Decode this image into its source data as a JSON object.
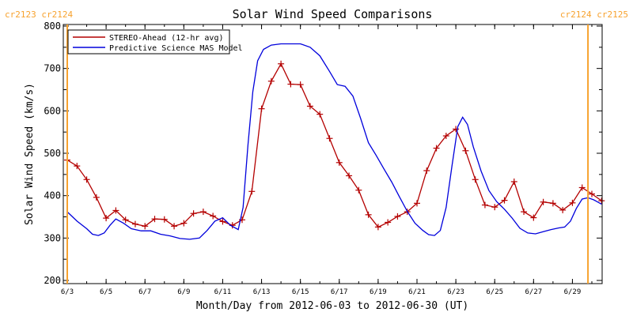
{
  "chart_data": {
    "type": "line",
    "title": "Solar Wind Speed Comparisons",
    "xlabel": "Month/Day from 2012-06-03 to 2012-06-30 (UT)",
    "ylabel": "Solar Wind Speed (km/s)",
    "ylim": [
      200,
      800
    ],
    "xlim": [
      "2012-06-03",
      "2012-06-30"
    ],
    "yticks": [
      200,
      300,
      400,
      500,
      600,
      700,
      800
    ],
    "xticks": [
      "6/3",
      "6/5",
      "6/7",
      "6/9",
      "6/11",
      "6/13",
      "6/15",
      "6/17",
      "6/19",
      "6/21",
      "6/23",
      "6/25",
      "6/27",
      "6/29"
    ],
    "legend_position": "top-left",
    "rotation_markers": [
      {
        "date": "2012-06-03",
        "label": "cr2123 cr2124",
        "color": "#f7a22e"
      },
      {
        "date": "2012-06-29.8",
        "label": "cr2124 cr2125",
        "color": "#f7a22e"
      }
    ],
    "series": [
      {
        "name": "STEREO-Ahead (12-hr avg)",
        "color": "#b40000",
        "marker": "plus",
        "points": [
          [
            "2012-06-03",
            484
          ],
          [
            "2012-06-03.5",
            470
          ],
          [
            "2012-06-04",
            438
          ],
          [
            "2012-06-04.5",
            396
          ],
          [
            "2012-06-05",
            347
          ],
          [
            "2012-06-05.5",
            365
          ],
          [
            "2012-06-06",
            343
          ],
          [
            "2012-06-06.5",
            333
          ],
          [
            "2012-06-07",
            328
          ],
          [
            "2012-06-07.5",
            345
          ],
          [
            "2012-06-08",
            344
          ],
          [
            "2012-06-08.5",
            328
          ],
          [
            "2012-06-09",
            335
          ],
          [
            "2012-06-09.5",
            358
          ],
          [
            "2012-06-10",
            362
          ],
          [
            "2012-06-10.5",
            352
          ],
          [
            "2012-06-11",
            339
          ],
          [
            "2012-06-11.5",
            330
          ],
          [
            "2012-06-12",
            343
          ],
          [
            "2012-06-12.5",
            410
          ],
          [
            "2012-06-13",
            605
          ],
          [
            "2012-06-13.5",
            670
          ],
          [
            "2012-06-14",
            711
          ],
          [
            "2012-06-14.5",
            663
          ],
          [
            "2012-06-15",
            662
          ],
          [
            "2012-06-15.5",
            611
          ],
          [
            "2012-06-16",
            592
          ],
          [
            "2012-06-16.5",
            535
          ],
          [
            "2012-06-17",
            478
          ],
          [
            "2012-06-17.5",
            447
          ],
          [
            "2012-06-18",
            413
          ],
          [
            "2012-06-18.5",
            355
          ],
          [
            "2012-06-19",
            326
          ],
          [
            "2012-06-19.5",
            337
          ],
          [
            "2012-06-20",
            351
          ],
          [
            "2012-06-20.5",
            362
          ],
          [
            "2012-06-21",
            382
          ],
          [
            "2012-06-21.5",
            459
          ],
          [
            "2012-06-22",
            512
          ],
          [
            "2012-06-22.5",
            541
          ],
          [
            "2012-06-23",
            557
          ],
          [
            "2012-06-23.5",
            506
          ],
          [
            "2012-06-24",
            438
          ],
          [
            "2012-06-24.5",
            378
          ],
          [
            "2012-06-25",
            373
          ],
          [
            "2012-06-25.5",
            389
          ],
          [
            "2012-06-26",
            433
          ],
          [
            "2012-06-26.5",
            362
          ],
          [
            "2012-06-27",
            348
          ],
          [
            "2012-06-27.5",
            385
          ],
          [
            "2012-06-28",
            382
          ],
          [
            "2012-06-28.5",
            366
          ],
          [
            "2012-06-29",
            383
          ],
          [
            "2012-06-29.5",
            419
          ],
          [
            "2012-06-30",
            404
          ],
          [
            "2012-06-30.5",
            388
          ]
        ]
      },
      {
        "name": "Predictive Science MAS Model",
        "color": "#0000dc",
        "marker": "none",
        "points": [
          [
            "2012-06-03",
            362
          ],
          [
            "2012-06-03.5",
            340
          ],
          [
            "2012-06-04",
            322
          ],
          [
            "2012-06-04.3",
            309
          ],
          [
            "2012-06-04.6",
            306
          ],
          [
            "2012-06-04.9",
            312
          ],
          [
            "2012-06-05.2",
            330
          ],
          [
            "2012-06-05.5",
            345
          ],
          [
            "2012-06-05.9",
            335
          ],
          [
            "2012-06-06.3",
            322
          ],
          [
            "2012-06-06.8",
            317
          ],
          [
            "2012-06-07.3",
            317
          ],
          [
            "2012-06-07.8",
            309
          ],
          [
            "2012-06-08.3",
            305
          ],
          [
            "2012-06-08.8",
            299
          ],
          [
            "2012-06-09.3",
            297
          ],
          [
            "2012-06-09.8",
            300
          ],
          [
            "2012-06-10.2",
            318
          ],
          [
            "2012-06-10.6",
            340
          ],
          [
            "2012-06-11",
            348
          ],
          [
            "2012-06-11.4",
            330
          ],
          [
            "2012-06-11.8",
            320
          ],
          [
            "2012-06-12.05",
            372
          ],
          [
            "2012-06-12.3",
            520
          ],
          [
            "2012-06-12.55",
            645
          ],
          [
            "2012-06-12.8",
            718
          ],
          [
            "2012-06-13.1",
            745
          ],
          [
            "2012-06-13.5",
            755
          ],
          [
            "2012-06-14",
            758
          ],
          [
            "2012-06-15",
            758
          ],
          [
            "2012-06-15.5",
            750
          ],
          [
            "2012-06-16",
            730
          ],
          [
            "2012-06-16.5",
            693
          ],
          [
            "2012-06-16.9",
            662
          ],
          [
            "2012-06-17.3",
            658
          ],
          [
            "2012-06-17.7",
            635
          ],
          [
            "2012-06-18.1",
            582
          ],
          [
            "2012-06-18.5",
            525
          ],
          [
            "2012-06-18.9",
            495
          ],
          [
            "2012-06-19.3",
            463
          ],
          [
            "2012-06-19.7",
            432
          ],
          [
            "2012-06-20.1",
            397
          ],
          [
            "2012-06-20.5",
            363
          ],
          [
            "2012-06-20.9",
            335
          ],
          [
            "2012-06-21.3",
            318
          ],
          [
            "2012-06-21.6",
            308
          ],
          [
            "2012-06-21.9",
            306
          ],
          [
            "2012-06-22.2",
            318
          ],
          [
            "2012-06-22.5",
            372
          ],
          [
            "2012-06-22.8",
            470
          ],
          [
            "2012-06-23.1",
            563
          ],
          [
            "2012-06-23.35",
            585
          ],
          [
            "2012-06-23.6",
            568
          ],
          [
            "2012-06-23.9",
            515
          ],
          [
            "2012-06-24.3",
            458
          ],
          [
            "2012-06-24.7",
            412
          ],
          [
            "2012-06-25.1",
            386
          ],
          [
            "2012-06-25.5",
            368
          ],
          [
            "2012-06-25.9",
            347
          ],
          [
            "2012-06-26.3",
            323
          ],
          [
            "2012-06-26.7",
            312
          ],
          [
            "2012-06-27.1",
            310
          ],
          [
            "2012-06-27.5",
            315
          ],
          [
            "2012-06-27.9",
            320
          ],
          [
            "2012-06-28.3",
            324
          ],
          [
            "2012-06-28.6",
            326
          ],
          [
            "2012-06-28.9",
            340
          ],
          [
            "2012-06-29.2",
            370
          ],
          [
            "2012-06-29.5",
            392
          ],
          [
            "2012-06-29.8",
            395
          ],
          [
            "2012-06-30.1",
            390
          ],
          [
            "2012-06-30.5",
            380
          ]
        ]
      }
    ]
  }
}
